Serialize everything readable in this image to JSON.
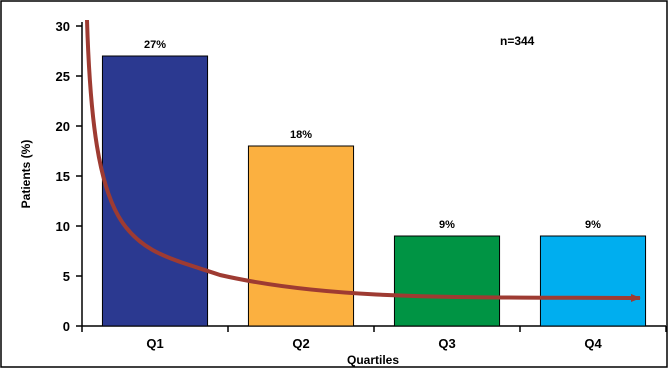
{
  "chart_data": {
    "type": "bar",
    "categories": [
      "Q1",
      "Q2",
      "Q3",
      "Q4"
    ],
    "values": [
      27,
      18,
      9,
      9
    ],
    "data_labels": [
      "27%",
      "18%",
      "9%",
      "9%"
    ],
    "bar_colors": [
      "#2b3990",
      "#fbb040",
      "#009444",
      "#00aeef"
    ],
    "xlabel": "Quartiles",
    "ylabel": "Patients (%)",
    "ylim": [
      0,
      30
    ],
    "yticks": [
      0,
      5,
      10,
      15,
      20,
      25,
      30
    ],
    "annotation": "n=344",
    "legend": "none",
    "grid": false,
    "trend_arrow": {
      "color": "#9e3b32",
      "direction": "downward-decreasing"
    }
  }
}
